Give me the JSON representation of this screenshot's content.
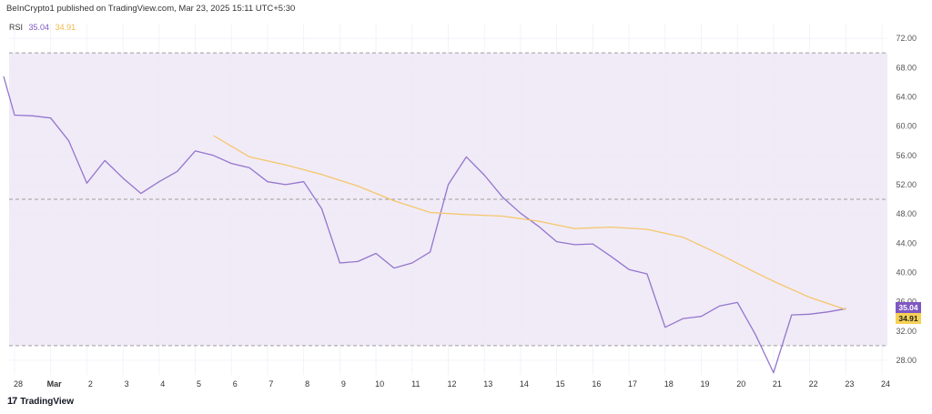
{
  "header": {
    "text": "BeInCrypto1 published on TradingView.com, Mar 23, 2025 15:11 UTC+5:30"
  },
  "legend": {
    "name": "RSI",
    "rsi_value": "35.04",
    "ma_value": "34.91"
  },
  "badges": {
    "rsi": "35.04",
    "ma": "34.91"
  },
  "brand": {
    "logo": "17",
    "name": "TradingView"
  },
  "colors": {
    "rsi_line": "#9575cd",
    "ma_line": "#f6c66b",
    "band": "#ede7f6",
    "badge_rsi": "#7e57c2",
    "badge_ma": "#f6d155"
  },
  "chart_data": {
    "type": "line",
    "ylim": [
      26,
      74
    ],
    "xlim": [
      -0.15,
      24.15
    ],
    "y_ticks": [
      "72.00",
      "68.00",
      "64.00",
      "60.00",
      "56.00",
      "52.00",
      "48.00",
      "44.00",
      "40.00",
      "36.00",
      "32.00",
      "28.00"
    ],
    "y_tick_values": [
      72,
      68,
      64,
      60,
      56,
      52,
      48,
      44,
      40,
      36,
      32,
      28
    ],
    "x_ticks": [
      "28",
      "Mar",
      "2",
      "3",
      "4",
      "5",
      "6",
      "7",
      "8",
      "9",
      "10",
      "11",
      "12",
      "13",
      "14",
      "15",
      "16",
      "17",
      "18",
      "19",
      "20",
      "21",
      "22",
      "23",
      "24"
    ],
    "bands": {
      "upper": 70,
      "middle": 50,
      "lower": 30
    },
    "series": [
      {
        "key": "rsi",
        "x": [
          -0.3,
          0,
          0.5,
          1,
          1.5,
          2,
          2.5,
          3,
          3.5,
          4,
          4.5,
          5,
          5.5,
          6,
          6.5,
          7,
          7.5,
          8,
          8.5,
          9,
          9.5,
          10,
          10.5,
          11,
          11.5,
          12,
          12.5,
          13,
          13.5,
          14,
          14.5,
          15,
          15.5,
          16,
          16.5,
          17,
          17.5,
          18,
          18.5,
          19,
          19.5,
          20,
          20.5,
          21,
          21.5,
          22,
          22.5,
          23
        ],
        "values": [
          66.8,
          61.5,
          61.4,
          61.1,
          58.0,
          52.2,
          55.3,
          52.9,
          50.8,
          52.4,
          53.8,
          56.6,
          56.0,
          54.9,
          54.3,
          52.4,
          52.0,
          52.4,
          48.7,
          41.3,
          41.5,
          42.6,
          40.6,
          41.3,
          42.8,
          52.0,
          55.8,
          53.3,
          50.3,
          48.1,
          46.3,
          44.2,
          43.8,
          43.9,
          42.2,
          40.4,
          39.8,
          32.5,
          33.7,
          34.0,
          35.4,
          35.9,
          31.5,
          26.3,
          34.2,
          34.3,
          34.6,
          35.04
        ]
      },
      {
        "key": "ma",
        "x": [
          5.5,
          6.5,
          7.5,
          8.5,
          9.5,
          10.5,
          11.5,
          12.5,
          13.5,
          14.5,
          15.5,
          16.5,
          17.5,
          18.5,
          19.5,
          20.5,
          21,
          22,
          23
        ],
        "values": [
          58.7,
          55.8,
          54.7,
          53.4,
          51.8,
          49.8,
          48.2,
          47.9,
          47.7,
          47.0,
          46.0,
          46.2,
          45.9,
          44.8,
          42.5,
          40.0,
          38.8,
          36.6,
          34.91
        ]
      }
    ]
  }
}
